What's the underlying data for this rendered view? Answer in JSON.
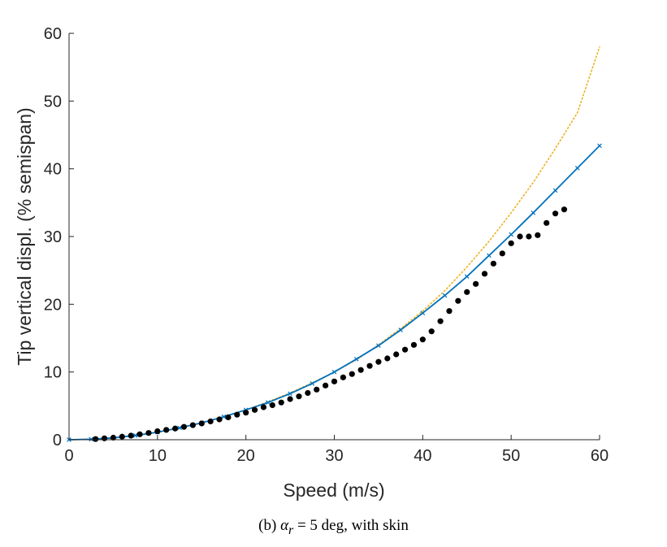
{
  "chart_data": {
    "type": "line",
    "title": "",
    "xlabel": "Speed (m/s)",
    "ylabel": "Tip vertical displ. (% semispan)",
    "xlim": [
      0,
      60
    ],
    "ylim": [
      0,
      60
    ],
    "xticks": [
      "0",
      "10",
      "20",
      "30",
      "40",
      "50",
      "60"
    ],
    "yticks": [
      "0",
      "10",
      "20",
      "30",
      "40",
      "50",
      "60"
    ],
    "grid": false,
    "legend": "none",
    "series": [
      {
        "style": "dotted",
        "color": "#EDB120",
        "x": [
          0,
          2.5,
          5,
          7.5,
          10,
          12.5,
          15,
          17.5,
          20,
          22.5,
          25,
          27.5,
          30,
          32.5,
          35,
          37.5,
          40,
          42.5,
          45,
          47.5,
          50,
          52.5,
          55,
          57.5,
          60
        ],
        "y": [
          0,
          0.07,
          0.28,
          0.63,
          1.1,
          1.75,
          2.5,
          3.4,
          4.4,
          5.6,
          6.9,
          8.4,
          10.0,
          11.8,
          14.0,
          16.4,
          19.0,
          22.0,
          25.5,
          29.3,
          33.5,
          38.0,
          43.0,
          48.3,
          58.0
        ]
      },
      {
        "style": "solid-x",
        "color": "#0072BD",
        "x": [
          0,
          2.5,
          5,
          7.5,
          10,
          12.5,
          15,
          17.5,
          20,
          22.5,
          25,
          27.5,
          30,
          32.5,
          35,
          37.5,
          40,
          42.5,
          45,
          47.5,
          50,
          52.5,
          55,
          57.5,
          60
        ],
        "y": [
          0,
          0.07,
          0.28,
          0.63,
          1.1,
          1.75,
          2.5,
          3.4,
          4.4,
          5.5,
          6.8,
          8.3,
          10.0,
          11.9,
          13.9,
          16.2,
          18.7,
          21.3,
          24.1,
          27.2,
          30.3,
          33.5,
          36.8,
          40.1,
          43.4
        ]
      },
      {
        "style": "markers",
        "color": "#000000",
        "x": [
          3,
          4,
          5,
          6,
          7,
          8,
          9,
          10,
          11,
          12,
          13,
          14,
          15,
          16,
          17,
          18,
          19,
          20,
          21,
          22,
          23,
          24,
          25,
          26,
          27,
          28,
          29,
          30,
          31,
          32,
          33,
          34,
          35,
          36,
          37,
          38,
          39,
          40,
          41,
          42,
          43,
          44,
          45,
          46,
          47,
          48,
          49,
          50,
          51,
          52,
          53,
          54,
          55,
          56
        ],
        "y": [
          0.1,
          0.2,
          0.3,
          0.45,
          0.6,
          0.8,
          1.0,
          1.25,
          1.45,
          1.65,
          1.9,
          2.15,
          2.4,
          2.7,
          3.0,
          3.3,
          3.7,
          4.0,
          4.4,
          4.8,
          5.1,
          5.5,
          6.0,
          6.4,
          6.9,
          7.4,
          8.0,
          8.6,
          9.2,
          9.7,
          10.3,
          10.9,
          11.5,
          12.0,
          12.6,
          13.3,
          14.0,
          14.8,
          16.0,
          17.5,
          19.0,
          20.5,
          21.8,
          23.0,
          24.5,
          26.0,
          27.5,
          29.0,
          30.0,
          30.0,
          30.2,
          32.0,
          33.4,
          34.0
        ]
      }
    ]
  },
  "caption": {
    "prefix": "(b)  ",
    "symbol": "α",
    "subscript": "r",
    "rest": " = 5 deg, with skin"
  }
}
